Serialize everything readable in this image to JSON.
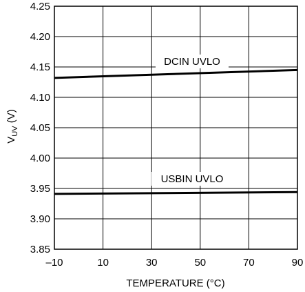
{
  "chart_data": {
    "type": "line",
    "title": "",
    "xlabel": "TEMPERATURE (°C)",
    "ylabel": {
      "main": "V",
      "sub": "UV",
      "unit": " (V)"
    },
    "xlim": [
      -10,
      90
    ],
    "ylim": [
      3.85,
      4.25
    ],
    "grid": true,
    "x_ticks": [
      -10,
      10,
      30,
      50,
      70,
      90
    ],
    "x_tick_labels": [
      "–10",
      "10",
      "30",
      "50",
      "70",
      "90"
    ],
    "y_ticks": [
      3.85,
      3.9,
      3.95,
      4.0,
      4.05,
      4.1,
      4.15,
      4.2,
      4.25
    ],
    "y_tick_labels": [
      "3.85",
      "3.90",
      "3.95",
      "4.00",
      "4.05",
      "4.10",
      "4.15",
      "4.20",
      "4.25"
    ],
    "series": [
      {
        "name": "DCIN UVLO",
        "x": [
          -10,
          90
        ],
        "y": [
          4.132,
          4.145
        ],
        "color": "#000000"
      },
      {
        "name": "USBIN UVLO",
        "x": [
          -10,
          90
        ],
        "y": [
          3.941,
          3.944
        ],
        "color": "#000000"
      }
    ],
    "annotations": [
      {
        "text": "DCIN UVLO",
        "series": "DCIN UVLO"
      },
      {
        "text": "USBIN UVLO",
        "series": "USBIN UVLO"
      }
    ]
  }
}
